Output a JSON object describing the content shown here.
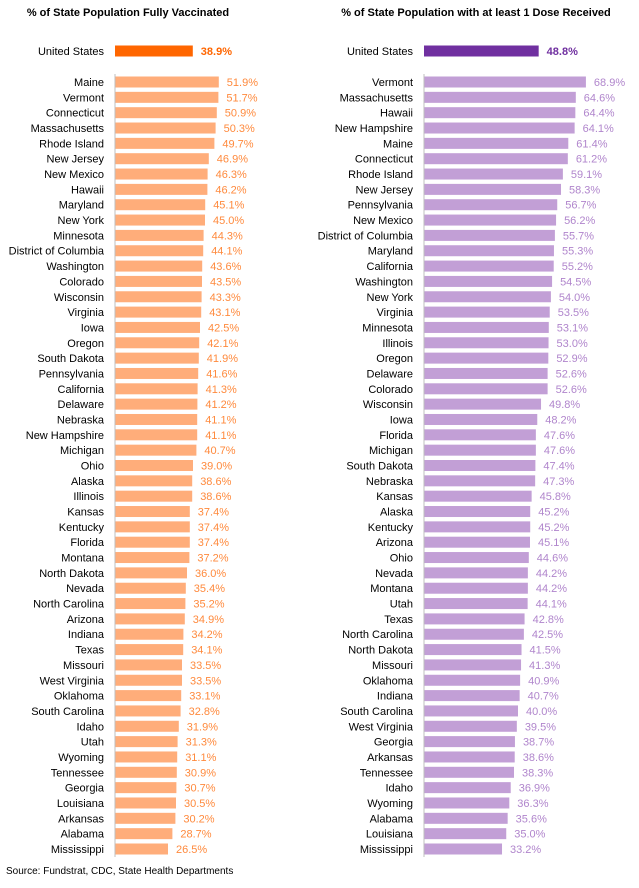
{
  "chart_data": [
    {
      "type": "bar",
      "orientation": "horizontal",
      "title": "% of State Population Fully Vaccinated",
      "bar_color": "#FFAD7A",
      "highlight_color": "#FF6600",
      "value_color": "#FF8A3D",
      "highlight": {
        "label": "United States",
        "value": 38.9,
        "text": "38.9%"
      },
      "xlim": [
        0,
        100
      ],
      "categories": [
        "Maine",
        "Vermont",
        "Connecticut",
        "Massachusetts",
        "Rhode Island",
        "New Jersey",
        "New Mexico",
        "Hawaii",
        "Maryland",
        "New York",
        "Minnesota",
        "District of Columbia",
        "Washington",
        "Colorado",
        "Wisconsin",
        "Virginia",
        "Iowa",
        "Oregon",
        "South Dakota",
        "Pennsylvania",
        "California",
        "Delaware",
        "Nebraska",
        "New Hampshire",
        "Michigan",
        "Ohio",
        "Alaska",
        "Illinois",
        "Kansas",
        "Kentucky",
        "Florida",
        "Montana",
        "North Dakota",
        "Nevada",
        "North Carolina",
        "Arizona",
        "Indiana",
        "Texas",
        "Missouri",
        "West Virginia",
        "Oklahoma",
        "South Carolina",
        "Idaho",
        "Utah",
        "Wyoming",
        "Tennessee",
        "Georgia",
        "Louisiana",
        "Arkansas",
        "Alabama",
        "Mississippi"
      ],
      "values": [
        51.9,
        51.7,
        50.9,
        50.3,
        49.7,
        46.9,
        46.3,
        46.2,
        45.1,
        45.0,
        44.3,
        44.1,
        43.6,
        43.5,
        43.3,
        43.1,
        42.5,
        42.1,
        41.9,
        41.6,
        41.3,
        41.2,
        41.1,
        41.1,
        40.7,
        39.0,
        38.6,
        38.6,
        37.4,
        37.4,
        37.4,
        37.2,
        36.0,
        35.4,
        35.2,
        34.9,
        34.2,
        34.1,
        33.5,
        33.5,
        33.1,
        32.8,
        31.9,
        31.3,
        31.1,
        30.9,
        30.7,
        30.5,
        30.2,
        28.7,
        26.5
      ],
      "value_labels": [
        "51.9%",
        "51.7%",
        "50.9%",
        "50.3%",
        "49.7%",
        "46.9%",
        "46.3%",
        "46.2%",
        "45.1%",
        "45.0%",
        "44.3%",
        "44.1%",
        "43.6%",
        "43.5%",
        "43.3%",
        "43.1%",
        "42.5%",
        "42.1%",
        "41.9%",
        "41.6%",
        "41.3%",
        "41.2%",
        "41.1%",
        "41.1%",
        "40.7%",
        "39.0%",
        "38.6%",
        "38.6%",
        "37.4%",
        "37.4%",
        "37.4%",
        "37.2%",
        "36.0%",
        "35.4%",
        "35.2%",
        "34.9%",
        "34.2%",
        "34.1%",
        "33.5%",
        "33.5%",
        "33.1%",
        "32.8%",
        "31.9%",
        "31.3%",
        "31.1%",
        "30.9%",
        "30.7%",
        "30.5%",
        "30.2%",
        "28.7%",
        "26.5%"
      ]
    },
    {
      "type": "bar",
      "orientation": "horizontal",
      "title": "% of State Population with at least 1 Dose Received",
      "bar_color": "#C29FD6",
      "highlight_color": "#7030A0",
      "value_color": "#B085CC",
      "highlight": {
        "label": "United States",
        "value": 48.8,
        "text": "48.8%"
      },
      "xlim": [
        0,
        100
      ],
      "categories": [
        "Vermont",
        "Massachusetts",
        "Hawaii",
        "New Hampshire",
        "Maine",
        "Connecticut",
        "Rhode Island",
        "New Jersey",
        "Pennsylvania",
        "New Mexico",
        "District of Columbia",
        "Maryland",
        "California",
        "Washington",
        "New York",
        "Virginia",
        "Minnesota",
        "Illinois",
        "Oregon",
        "Delaware",
        "Colorado",
        "Wisconsin",
        "Iowa",
        "Florida",
        "Michigan",
        "South Dakota",
        "Nebraska",
        "Kansas",
        "Alaska",
        "Kentucky",
        "Arizona",
        "Ohio",
        "Nevada",
        "Montana",
        "Utah",
        "Texas",
        "North Carolina",
        "North Dakota",
        "Missouri",
        "Oklahoma",
        "Indiana",
        "South Carolina",
        "West Virginia",
        "Georgia",
        "Arkansas",
        "Tennessee",
        "Idaho",
        "Wyoming",
        "Alabama",
        "Louisiana",
        "Mississippi"
      ],
      "values": [
        68.9,
        64.6,
        64.4,
        64.1,
        61.4,
        61.2,
        59.1,
        58.3,
        56.7,
        56.2,
        55.7,
        55.3,
        55.2,
        54.5,
        54.0,
        53.5,
        53.1,
        53.0,
        52.9,
        52.6,
        52.6,
        49.8,
        48.2,
        47.6,
        47.6,
        47.4,
        47.3,
        45.8,
        45.2,
        45.2,
        45.1,
        44.6,
        44.2,
        44.2,
        44.1,
        42.8,
        42.5,
        41.5,
        41.3,
        40.9,
        40.7,
        40.0,
        39.5,
        38.7,
        38.6,
        38.3,
        36.9,
        36.3,
        35.6,
        35.0,
        33.2
      ],
      "value_labels": [
        "68.9%",
        "64.6%",
        "64.4%",
        "64.1%",
        "61.4%",
        "61.2%",
        "59.1%",
        "58.3%",
        "56.7%",
        "56.2%",
        "55.7%",
        "55.3%",
        "55.2%",
        "54.5%",
        "54.0%",
        "53.5%",
        "53.1%",
        "53.0%",
        "52.9%",
        "52.6%",
        "52.6%",
        "49.8%",
        "48.2%",
        "47.6%",
        "47.6%",
        "47.4%",
        "47.3%",
        "45.8%",
        "45.2%",
        "45.2%",
        "45.1%",
        "44.6%",
        "44.2%",
        "44.2%",
        "44.1%",
        "42.8%",
        "42.5%",
        "41.5%",
        "41.3%",
        "40.9%",
        "40.7%",
        "40.0%",
        "39.5%",
        "38.7%",
        "38.6%",
        "38.3%",
        "36.9%",
        "36.3%",
        "35.6%",
        "35.0%",
        "33.2%"
      ]
    }
  ],
  "source": "Source: Fundstrat, CDC, State Health Departments"
}
